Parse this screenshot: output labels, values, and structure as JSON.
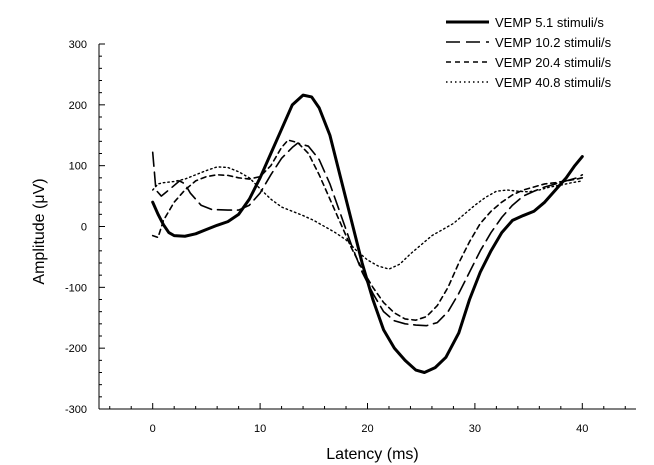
{
  "chart_data": {
    "type": "line",
    "title": "",
    "xlabel": "Latency (ms)",
    "ylabel": "Amplitude (μV)",
    "xlim": [
      -5,
      45
    ],
    "ylim": [
      -300,
      300
    ],
    "x_ticks": [
      0,
      10,
      20,
      30,
      40
    ],
    "y_ticks": [
      300,
      200,
      100,
      0,
      -100,
      -200,
      -300
    ],
    "grid": false,
    "legend_position": "top-right",
    "series": [
      {
        "name": "VEMP 5.1 stimuli/s",
        "style": "solid-thick",
        "color": "#000000",
        "points": [
          [
            0,
            40
          ],
          [
            0.5,
            20
          ],
          [
            1,
            3
          ],
          [
            1.5,
            -10
          ],
          [
            2,
            -15
          ],
          [
            3,
            -16
          ],
          [
            4,
            -12
          ],
          [
            5,
            -5
          ],
          [
            6,
            2
          ],
          [
            7,
            8
          ],
          [
            8,
            20
          ],
          [
            9,
            45
          ],
          [
            10,
            80
          ],
          [
            11,
            120
          ],
          [
            12,
            160
          ],
          [
            13,
            200
          ],
          [
            14,
            216
          ],
          [
            14.8,
            213
          ],
          [
            15.5,
            195
          ],
          [
            16.5,
            150
          ],
          [
            17.5,
            80
          ],
          [
            18.5,
            10
          ],
          [
            19.5,
            -60
          ],
          [
            20.5,
            -120
          ],
          [
            21.5,
            -170
          ],
          [
            22.5,
            -200
          ],
          [
            23.5,
            -220
          ],
          [
            24.5,
            -236
          ],
          [
            25.3,
            -240
          ],
          [
            26.3,
            -232
          ],
          [
            27.3,
            -215
          ],
          [
            28.5,
            -175
          ],
          [
            29.5,
            -120
          ],
          [
            30.5,
            -75
          ],
          [
            31.5,
            -40
          ],
          [
            32.5,
            -10
          ],
          [
            33.5,
            10
          ],
          [
            34.5,
            18
          ],
          [
            35.5,
            25
          ],
          [
            36.5,
            40
          ],
          [
            37.5,
            60
          ],
          [
            38.5,
            80
          ],
          [
            39.3,
            100
          ],
          [
            40,
            115
          ]
        ]
      },
      {
        "name": "VEMP 10.2 stimuli/s",
        "style": "long-dash",
        "color": "#000000",
        "points": [
          [
            0,
            122
          ],
          [
            0.3,
            60
          ],
          [
            0.8,
            50
          ],
          [
            1.5,
            60
          ],
          [
            2.5,
            75
          ],
          [
            3,
            70
          ],
          [
            3.5,
            55
          ],
          [
            4.5,
            35
          ],
          [
            5.5,
            28
          ],
          [
            7,
            27
          ],
          [
            8,
            27
          ],
          [
            9,
            35
          ],
          [
            10,
            55
          ],
          [
            11,
            85
          ],
          [
            12,
            112
          ],
          [
            13,
            130
          ],
          [
            13.5,
            137
          ],
          [
            14.5,
            132
          ],
          [
            15.5,
            110
          ],
          [
            16.5,
            70
          ],
          [
            17.5,
            20
          ],
          [
            18.5,
            -30
          ],
          [
            19.5,
            -75
          ],
          [
            20.5,
            -110
          ],
          [
            21.5,
            -140
          ],
          [
            22.5,
            -155
          ],
          [
            23.5,
            -160
          ],
          [
            24.5,
            -162
          ],
          [
            25.5,
            -163
          ],
          [
            26.5,
            -158
          ],
          [
            27.5,
            -140
          ],
          [
            28.5,
            -110
          ],
          [
            29.5,
            -75
          ],
          [
            30.5,
            -40
          ],
          [
            31.5,
            -10
          ],
          [
            32.5,
            15
          ],
          [
            33.5,
            35
          ],
          [
            34.5,
            50
          ],
          [
            35.5,
            58
          ],
          [
            36.5,
            65
          ],
          [
            37.5,
            70
          ],
          [
            38.5,
            75
          ],
          [
            39.5,
            80
          ],
          [
            40,
            85
          ]
        ]
      },
      {
        "name": "VEMP 20.4 stimuli/s",
        "style": "short-dash",
        "color": "#000000",
        "points": [
          [
            0,
            -15
          ],
          [
            0.5,
            -18
          ],
          [
            1,
            10
          ],
          [
            2,
            40
          ],
          [
            3,
            60
          ],
          [
            4,
            75
          ],
          [
            5,
            82
          ],
          [
            6,
            85
          ],
          [
            7,
            84
          ],
          [
            8,
            80
          ],
          [
            9,
            78
          ],
          [
            10,
            82
          ],
          [
            11,
            100
          ],
          [
            12,
            130
          ],
          [
            12.6,
            142
          ],
          [
            13.5,
            138
          ],
          [
            14.5,
            120
          ],
          [
            15.5,
            85
          ],
          [
            16.5,
            45
          ],
          [
            17.5,
            5
          ],
          [
            18.5,
            -35
          ],
          [
            19.5,
            -70
          ],
          [
            20.5,
            -100
          ],
          [
            21.5,
            -125
          ],
          [
            22.5,
            -142
          ],
          [
            23.5,
            -152
          ],
          [
            24.5,
            -154
          ],
          [
            25.5,
            -148
          ],
          [
            26.5,
            -130
          ],
          [
            27.5,
            -100
          ],
          [
            28.5,
            -60
          ],
          [
            29.5,
            -25
          ],
          [
            30.5,
            5
          ],
          [
            31.5,
            25
          ],
          [
            32.5,
            40
          ],
          [
            33.5,
            52
          ],
          [
            34.5,
            60
          ],
          [
            35.5,
            65
          ],
          [
            36.5,
            70
          ],
          [
            37.5,
            72
          ],
          [
            38.5,
            75
          ],
          [
            39.5,
            78
          ],
          [
            40,
            80
          ]
        ]
      },
      {
        "name": "VEMP 40.8 stimuli/s",
        "style": "dotted",
        "color": "#000000",
        "points": [
          [
            0,
            60
          ],
          [
            0.5,
            70
          ],
          [
            1,
            72
          ],
          [
            2,
            74
          ],
          [
            3,
            78
          ],
          [
            4,
            85
          ],
          [
            5,
            92
          ],
          [
            6,
            98
          ],
          [
            7,
            97
          ],
          [
            8,
            90
          ],
          [
            9,
            80
          ],
          [
            10,
            62
          ],
          [
            11,
            45
          ],
          [
            12,
            32
          ],
          [
            13,
            25
          ],
          [
            14,
            18
          ],
          [
            15,
            10
          ],
          [
            16,
            0
          ],
          [
            17,
            -10
          ],
          [
            18,
            -22
          ],
          [
            19,
            -40
          ],
          [
            20,
            -55
          ],
          [
            21,
            -65
          ],
          [
            22,
            -70
          ],
          [
            23,
            -62
          ],
          [
            24,
            -45
          ],
          [
            25,
            -30
          ],
          [
            26,
            -15
          ],
          [
            27,
            -5
          ],
          [
            28,
            5
          ],
          [
            29,
            20
          ],
          [
            30,
            35
          ],
          [
            31,
            48
          ],
          [
            32,
            58
          ],
          [
            33,
            60
          ],
          [
            34,
            58
          ],
          [
            35,
            57
          ],
          [
            36,
            60
          ],
          [
            37,
            65
          ],
          [
            38,
            68
          ],
          [
            39,
            72
          ],
          [
            40,
            75
          ]
        ]
      }
    ]
  }
}
